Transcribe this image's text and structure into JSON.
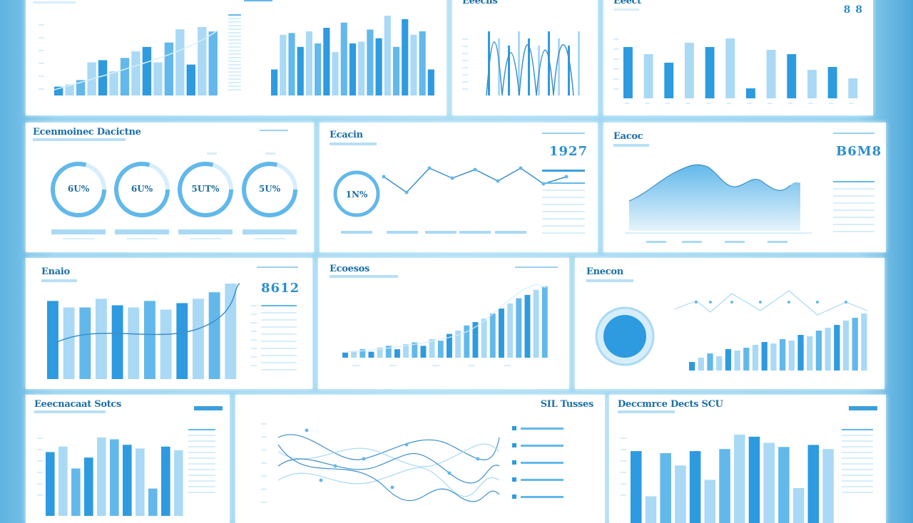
{
  "colors": {
    "dark": "#2e9ae0",
    "mid": "#62b8ea",
    "light": "#a9d9f5",
    "pale": "#d6eefb",
    "line": "#3b8fc9"
  },
  "panels": {
    "row1a": {
      "title": "",
      "chart_data": {
        "type": "bar",
        "values": [
          8,
          10,
          14,
          30,
          32,
          22,
          34,
          40,
          44,
          30,
          48,
          60,
          28,
          62,
          58
        ]
      }
    },
    "row1b": {
      "chart_data": {
        "type": "bar",
        "values": [
          30,
          70,
          72,
          56,
          74,
          60,
          78,
          50,
          84,
          60,
          62,
          76,
          66,
          92,
          56,
          88,
          70,
          74,
          30
        ]
      }
    },
    "row1c": {
      "title": "Eeeciis",
      "chart_data": {
        "type": "line"
      }
    },
    "row1d": {
      "title": "Eeect",
      "kpi": "8 8",
      "chart_data": {
        "type": "bar",
        "values": [
          72,
          62,
          50,
          78,
          72,
          84,
          14,
          68,
          62,
          40,
          44,
          28
        ]
      }
    },
    "r2a": {
      "title": "Ecenmoinec Dacictne",
      "rings": [
        "6U%",
        "6U%",
        "5UT%",
        "5U%"
      ]
    },
    "r2b": {
      "title": "Ecacin",
      "kpi": "1927",
      "ring": "1N%",
      "chart_data": {
        "type": "line",
        "values": [
          50,
          28,
          62,
          48,
          60,
          44,
          62,
          40,
          50
        ]
      }
    },
    "r2c": {
      "title": "Eacoc",
      "kpi": "B6M8",
      "chart_data": {
        "type": "area"
      }
    },
    "r3a": {
      "title": "Enaio",
      "kpi": "8612",
      "chart_data": {
        "type": "bar",
        "values": [
          72,
          66,
          66,
          74,
          68,
          66,
          72,
          64,
          70,
          74,
          80,
          88
        ]
      }
    },
    "r3b": {
      "title": "Ecoesos",
      "chart_data": {
        "type": "bar",
        "values": [
          6,
          8,
          10,
          7,
          12,
          14,
          10,
          16,
          18,
          14,
          22,
          20,
          28,
          32,
          38,
          42,
          46,
          52,
          58,
          64,
          70,
          74,
          80,
          84
        ]
      }
    },
    "r3c": {
      "title": "Enecon",
      "chart_data": {
        "type": "bar",
        "values": [
          12,
          18,
          24,
          20,
          30,
          28,
          32,
          36,
          40,
          38,
          44,
          42,
          50,
          48,
          56,
          60,
          64,
          70,
          74,
          80
        ]
      }
    },
    "r4a": {
      "title": "Eeecnacaat Sotcs",
      "chart_data": {
        "type": "bar",
        "values": [
          70,
          76,
          52,
          64,
          86,
          84,
          78,
          74,
          30,
          76,
          72
        ]
      }
    },
    "r4b": {
      "title": "SIL Tusses",
      "chart_data": {
        "type": "line"
      }
    },
    "r4c": {
      "title": "Deccmrce Dects SCU",
      "chart_data": {
        "type": "bar",
        "values": [
          70,
          26,
          68,
          56,
          70,
          42,
          72,
          86,
          84,
          78,
          74,
          34,
          76,
          72
        ]
      }
    }
  }
}
